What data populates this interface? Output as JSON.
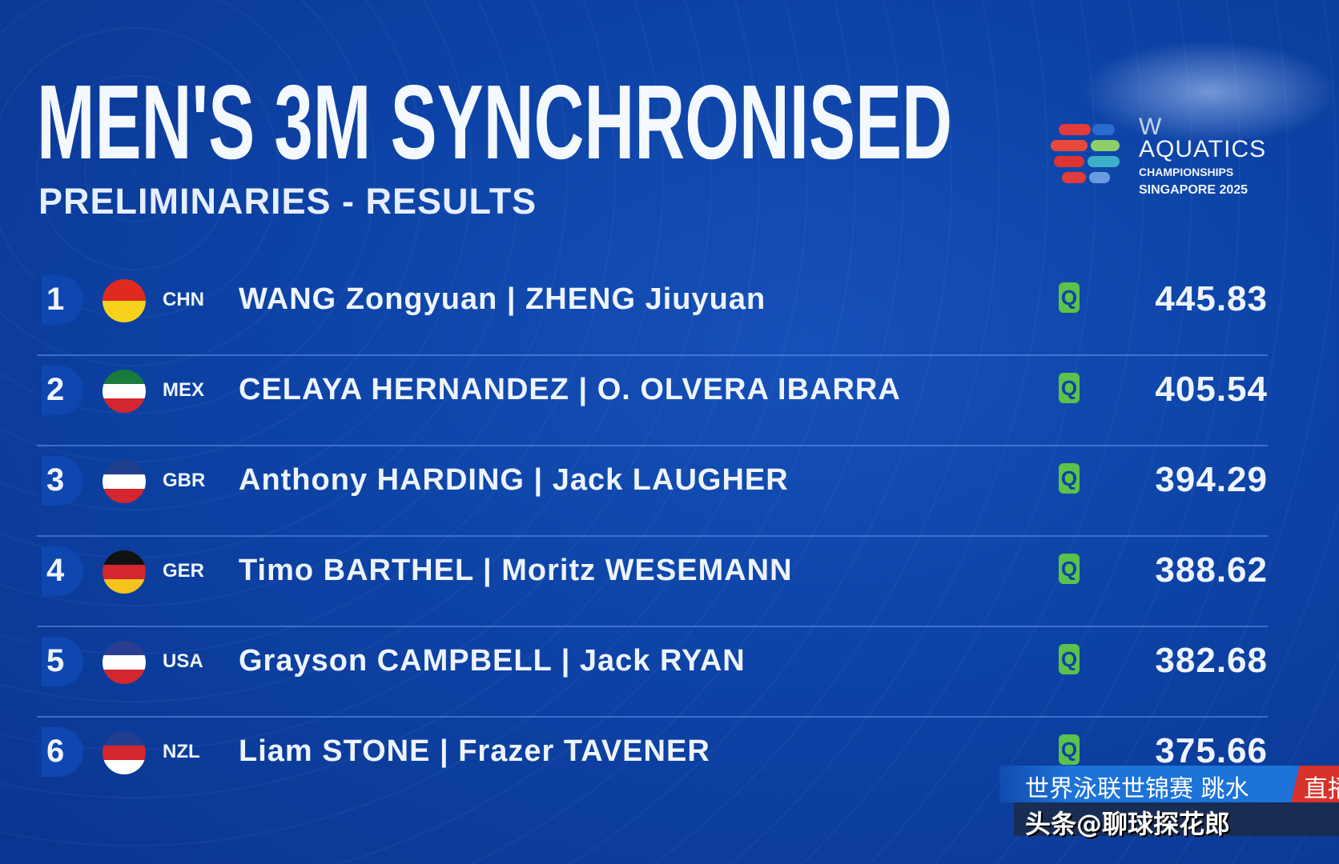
{
  "header": {
    "title": "MEN'S 3M SYNCHRONISED",
    "subtitle": "PRELIMINARIES - RESULTS"
  },
  "logo": {
    "line1": "W",
    "line2": "AQUATICS",
    "line3": "CHAMPIONSHIPS",
    "line4": "SINGAPORE 2025"
  },
  "results": [
    {
      "rank": "1",
      "code": "CHN",
      "names": "WANG Zongyuan | ZHENG Jiuyuan",
      "q": "Q",
      "score": "445.83",
      "flag_colors": [
        "#e02a1f",
        "#f6d21c"
      ]
    },
    {
      "rank": "2",
      "code": "MEX",
      "names": "CELAYA HERNANDEZ | O. OLVERA IBARRA",
      "q": "Q",
      "score": "405.54",
      "flag_colors": [
        "#1a7a3c",
        "#ffffff",
        "#d3262e"
      ]
    },
    {
      "rank": "3",
      "code": "GBR",
      "names": "Anthony HARDING | Jack LAUGHER",
      "q": "Q",
      "score": "394.29",
      "flag_colors": [
        "#1f3e8f",
        "#ffffff",
        "#d3262e"
      ]
    },
    {
      "rank": "4",
      "code": "GER",
      "names": "Timo BARTHEL | Moritz WESEMANN",
      "q": "Q",
      "score": "388.62",
      "flag_colors": [
        "#111111",
        "#d3262e",
        "#f6c21c"
      ]
    },
    {
      "rank": "5",
      "code": "USA",
      "names": "Grayson CAMPBELL | Jack RYAN",
      "q": "Q",
      "score": "382.68",
      "flag_colors": [
        "#2a3f8f",
        "#ffffff",
        "#d3262e"
      ]
    },
    {
      "rank": "6",
      "code": "NZL",
      "names": "Liam STONE | Frazer TAVENER",
      "q": "Q",
      "score": "375.66",
      "flag_colors": [
        "#1f3e8f",
        "#d3262e",
        "#ffffff"
      ]
    }
  ],
  "ticker": {
    "text": "世界泳联世锦赛 跳水",
    "live": "直播"
  },
  "watermark": "头条@聊球探花郎",
  "colors": {
    "background": "#0d43a6",
    "qualified": "#5bc24a",
    "text": "#eef4ff"
  }
}
